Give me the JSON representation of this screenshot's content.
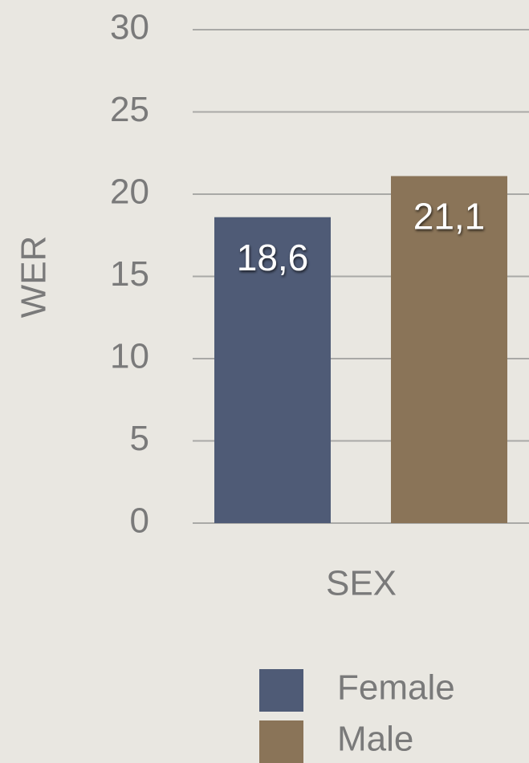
{
  "chart_data": {
    "type": "bar",
    "x_label": "SEX",
    "y_label": "WER",
    "series": [
      {
        "name": "Female",
        "color": "#4f5b76",
        "values": [
          18.6
        ],
        "value_labels": [
          "18,6"
        ]
      },
      {
        "name": "Male",
        "color": "#8a7458",
        "values": [
          21.1
        ],
        "value_labels": [
          "21,1"
        ]
      }
    ],
    "ylim": [
      0,
      30
    ],
    "yticks": [
      0,
      5,
      10,
      15,
      20,
      25,
      30
    ],
    "grid": true,
    "legend": "bottom"
  }
}
